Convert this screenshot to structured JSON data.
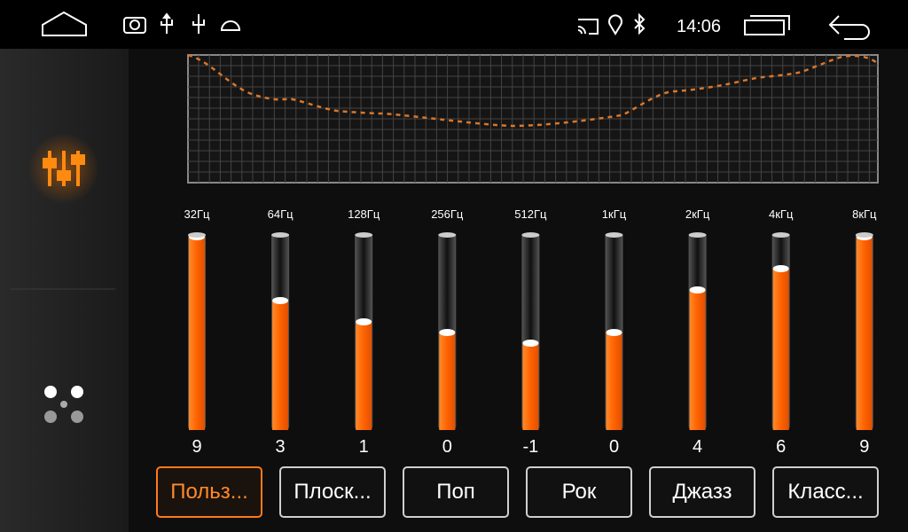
{
  "status_bar": {
    "time": "14:06"
  },
  "equalizer": {
    "bands": [
      {
        "label": "32Гц",
        "value": 9
      },
      {
        "label": "64Гц",
        "value": 3
      },
      {
        "label": "128Гц",
        "value": 1
      },
      {
        "label": "256Гц",
        "value": 0
      },
      {
        "label": "512Гц",
        "value": -1
      },
      {
        "label": "1кГц",
        "value": 0
      },
      {
        "label": "2кГц",
        "value": 4
      },
      {
        "label": "4кГц",
        "value": 6
      },
      {
        "label": "8кГц",
        "value": 9
      }
    ]
  },
  "presets": [
    "Польз...",
    "Плоск...",
    "Поп",
    "Рок",
    "Джазз",
    "Класс..."
  ]
}
